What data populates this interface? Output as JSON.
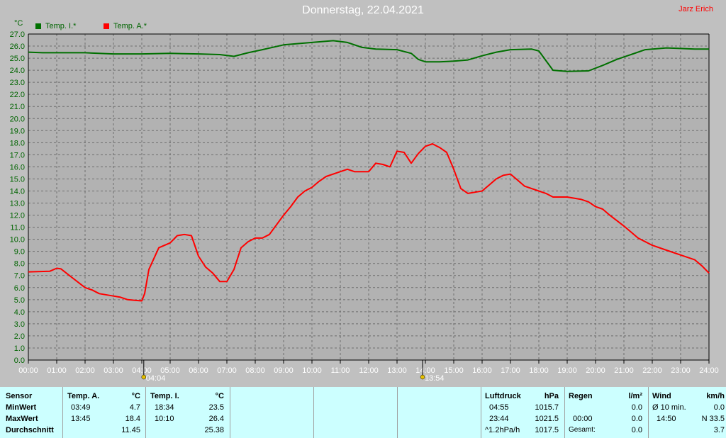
{
  "title": "Donnerstag, 22.04.2021",
  "author": "Jarz Erich",
  "y_unit": "°C",
  "colors": {
    "inside": "#007000",
    "outside": "#ff0000",
    "background": "#c0c0c0",
    "panel": "#ccffff"
  },
  "markers": [
    {
      "x": 4.07,
      "label": "04:04",
      "icon": "sunrise-icon"
    },
    {
      "x": 13.9,
      "label": "13:54",
      "icon": "sun-icon"
    }
  ],
  "chart_data": {
    "type": "line",
    "title": "Donnerstag, 22.04.2021",
    "xlabel": "",
    "ylabel": "°C",
    "xlim": [
      0,
      24
    ],
    "ylim": [
      0,
      27
    ],
    "grid": true,
    "legend_position": "top-left",
    "x_ticks": [
      "00:00",
      "01:00",
      "02:00",
      "03:00",
      "04:00",
      "05:00",
      "06:00",
      "07:00",
      "08:00",
      "09:00",
      "10:00",
      "11:00",
      "12:00",
      "13:00",
      "14:00",
      "15:00",
      "16:00",
      "17:00",
      "18:00",
      "19:00",
      "20:00",
      "21:00",
      "22:00",
      "23:00",
      "24:00"
    ],
    "y_ticks": [
      "0.0",
      "1.0",
      "2.0",
      "3.0",
      "4.0",
      "5.0",
      "6.0",
      "7.0",
      "8.0",
      "9.0",
      "10.0",
      "11.0",
      "12.0",
      "13.0",
      "14.0",
      "15.0",
      "16.0",
      "17.0",
      "18.0",
      "19.0",
      "20.0",
      "21.0",
      "22.0",
      "23.0",
      "24.0",
      "25.0",
      "26.0",
      "27.0"
    ],
    "series": [
      {
        "name": "Temp. I.*",
        "color": "#007000",
        "points": [
          [
            0,
            25.5
          ],
          [
            0.5,
            25.45
          ],
          [
            1,
            25.45
          ],
          [
            2,
            25.45
          ],
          [
            3,
            25.35
          ],
          [
            4,
            25.35
          ],
          [
            5,
            25.4
          ],
          [
            6,
            25.35
          ],
          [
            6.75,
            25.3
          ],
          [
            7.25,
            25.15
          ],
          [
            7.75,
            25.45
          ],
          [
            8.25,
            25.7
          ],
          [
            9,
            26.1
          ],
          [
            10,
            26.3
          ],
          [
            10.75,
            26.45
          ],
          [
            11.25,
            26.3
          ],
          [
            11.75,
            25.9
          ],
          [
            12.25,
            25.75
          ],
          [
            13,
            25.7
          ],
          [
            13.5,
            25.4
          ],
          [
            13.75,
            24.9
          ],
          [
            14,
            24.7
          ],
          [
            14.5,
            24.7
          ],
          [
            15,
            24.75
          ],
          [
            15.5,
            24.85
          ],
          [
            16,
            25.2
          ],
          [
            16.5,
            25.5
          ],
          [
            17,
            25.7
          ],
          [
            17.75,
            25.75
          ],
          [
            18,
            25.6
          ],
          [
            18.25,
            24.8
          ],
          [
            18.5,
            24.0
          ],
          [
            19,
            23.9
          ],
          [
            19.75,
            23.95
          ],
          [
            20.25,
            24.4
          ],
          [
            20.75,
            24.9
          ],
          [
            21.25,
            25.3
          ],
          [
            21.75,
            25.7
          ],
          [
            22.5,
            25.85
          ],
          [
            23,
            25.8
          ],
          [
            23.5,
            25.75
          ],
          [
            24,
            25.75
          ]
        ]
      },
      {
        "name": "Temp. A.*",
        "color": "#ff0000",
        "points": [
          [
            0,
            7.3
          ],
          [
            0.75,
            7.35
          ],
          [
            1,
            7.6
          ],
          [
            1.15,
            7.55
          ],
          [
            1.5,
            6.9
          ],
          [
            2,
            6.0
          ],
          [
            2.25,
            5.8
          ],
          [
            2.5,
            5.5
          ],
          [
            3,
            5.3
          ],
          [
            3.25,
            5.2
          ],
          [
            3.5,
            5.0
          ],
          [
            3.75,
            4.95
          ],
          [
            4,
            4.9
          ],
          [
            4.1,
            5.5
          ],
          [
            4.25,
            7.5
          ],
          [
            4.6,
            9.3
          ],
          [
            5,
            9.7
          ],
          [
            5.25,
            10.3
          ],
          [
            5.5,
            10.4
          ],
          [
            5.75,
            10.3
          ],
          [
            6,
            8.6
          ],
          [
            6.25,
            7.7
          ],
          [
            6.5,
            7.2
          ],
          [
            6.75,
            6.5
          ],
          [
            7,
            6.5
          ],
          [
            7.25,
            7.5
          ],
          [
            7.5,
            9.3
          ],
          [
            7.75,
            9.8
          ],
          [
            8,
            10.1
          ],
          [
            8.25,
            10.1
          ],
          [
            8.5,
            10.4
          ],
          [
            8.75,
            11.2
          ],
          [
            9,
            12.0
          ],
          [
            9.25,
            12.7
          ],
          [
            9.5,
            13.5
          ],
          [
            9.75,
            14.0
          ],
          [
            10,
            14.3
          ],
          [
            10.25,
            14.8
          ],
          [
            10.5,
            15.2
          ],
          [
            11,
            15.6
          ],
          [
            11.25,
            15.8
          ],
          [
            11.5,
            15.6
          ],
          [
            12,
            15.6
          ],
          [
            12.25,
            16.3
          ],
          [
            12.5,
            16.2
          ],
          [
            12.75,
            16.0
          ],
          [
            13,
            17.3
          ],
          [
            13.25,
            17.2
          ],
          [
            13.5,
            16.3
          ],
          [
            13.75,
            17.1
          ],
          [
            14,
            17.7
          ],
          [
            14.25,
            17.9
          ],
          [
            14.5,
            17.6
          ],
          [
            14.75,
            17.2
          ],
          [
            15,
            15.8
          ],
          [
            15.25,
            14.2
          ],
          [
            15.5,
            13.8
          ],
          [
            15.75,
            13.9
          ],
          [
            16,
            14.0
          ],
          [
            16.25,
            14.5
          ],
          [
            16.5,
            15.0
          ],
          [
            16.75,
            15.3
          ],
          [
            17,
            15.4
          ],
          [
            17.25,
            14.9
          ],
          [
            17.5,
            14.4
          ],
          [
            18,
            14.0
          ],
          [
            18.25,
            13.8
          ],
          [
            18.5,
            13.5
          ],
          [
            19,
            13.5
          ],
          [
            19.5,
            13.3
          ],
          [
            19.75,
            13.1
          ],
          [
            20,
            12.7
          ],
          [
            20.25,
            12.5
          ],
          [
            20.5,
            12.0
          ],
          [
            21,
            11.1
          ],
          [
            21.25,
            10.6
          ],
          [
            21.5,
            10.1
          ],
          [
            22,
            9.5
          ],
          [
            22.5,
            9.1
          ],
          [
            23,
            8.7
          ],
          [
            23.25,
            8.5
          ],
          [
            23.5,
            8.3
          ],
          [
            23.75,
            7.8
          ],
          [
            24,
            7.2
          ]
        ]
      }
    ]
  },
  "stats": {
    "headers": {
      "sensor": "Sensor",
      "temp_a": "Temp. A.",
      "temp_a_unit": "°C",
      "temp_i": "Temp. I.",
      "temp_i_unit": "°C",
      "pressure": "Luftdruck",
      "pressure_unit": "hPa",
      "rain": "Regen",
      "rain_unit": "l/m²",
      "wind": "Wind",
      "wind_unit": "km/h"
    },
    "rows": {
      "min_label": "MinWert",
      "max_label": "MaxWert",
      "avg_label": "Durchschnitt"
    },
    "temp_a": {
      "min_time": "03:49",
      "min": "4.7",
      "max_time": "13:45",
      "max": "18.4",
      "avg": "11.45"
    },
    "temp_i": {
      "min_time": "18:34",
      "min": "23.5",
      "max_time": "10:10",
      "max": "26.4",
      "avg": "25.38"
    },
    "pressure": {
      "r1_time": "04:55",
      "r1": "1015.7",
      "r2_time": "23:44",
      "r2": "1021.5",
      "r3_label": "^1.2hPa/h",
      "r3": "1017.5"
    },
    "rain": {
      "r2_time": "00:00",
      "r2": "0.0",
      "r1": "0.0",
      "r3_label": "Gesamt:",
      "r3": "0.0"
    },
    "wind": {
      "r1_label": "Ø 10 min.",
      "r1": "0.0",
      "r2_time": "14:50",
      "r2": "N 33.5",
      "r3": "3.7"
    }
  }
}
